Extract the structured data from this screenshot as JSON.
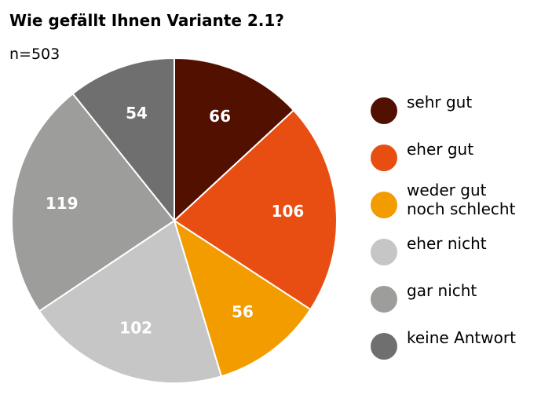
{
  "chart_data": {
    "type": "pie",
    "title": "Wie gefällt Ihnen Variante 2.1?",
    "subtitle": "n=503",
    "slices": [
      {
        "label": "sehr gut",
        "value": 66,
        "color": "#521000"
      },
      {
        "label": "eher gut",
        "value": 106,
        "color": "#e84e12"
      },
      {
        "label": "weder gut\nnoch schlecht",
        "value": 56,
        "color": "#f39c00"
      },
      {
        "label": "eher nicht",
        "value": 102,
        "color": "#c6c6c6"
      },
      {
        "label": "gar nicht",
        "value": 119,
        "color": "#9d9d9c"
      },
      {
        "label": "keine Antwort",
        "value": 54,
        "color": "#706f6f"
      }
    ],
    "slice_order": "clockwise from top",
    "slice_border_color": "#ffffff",
    "value_label_color": "#ffffff",
    "legend_position": "right"
  }
}
